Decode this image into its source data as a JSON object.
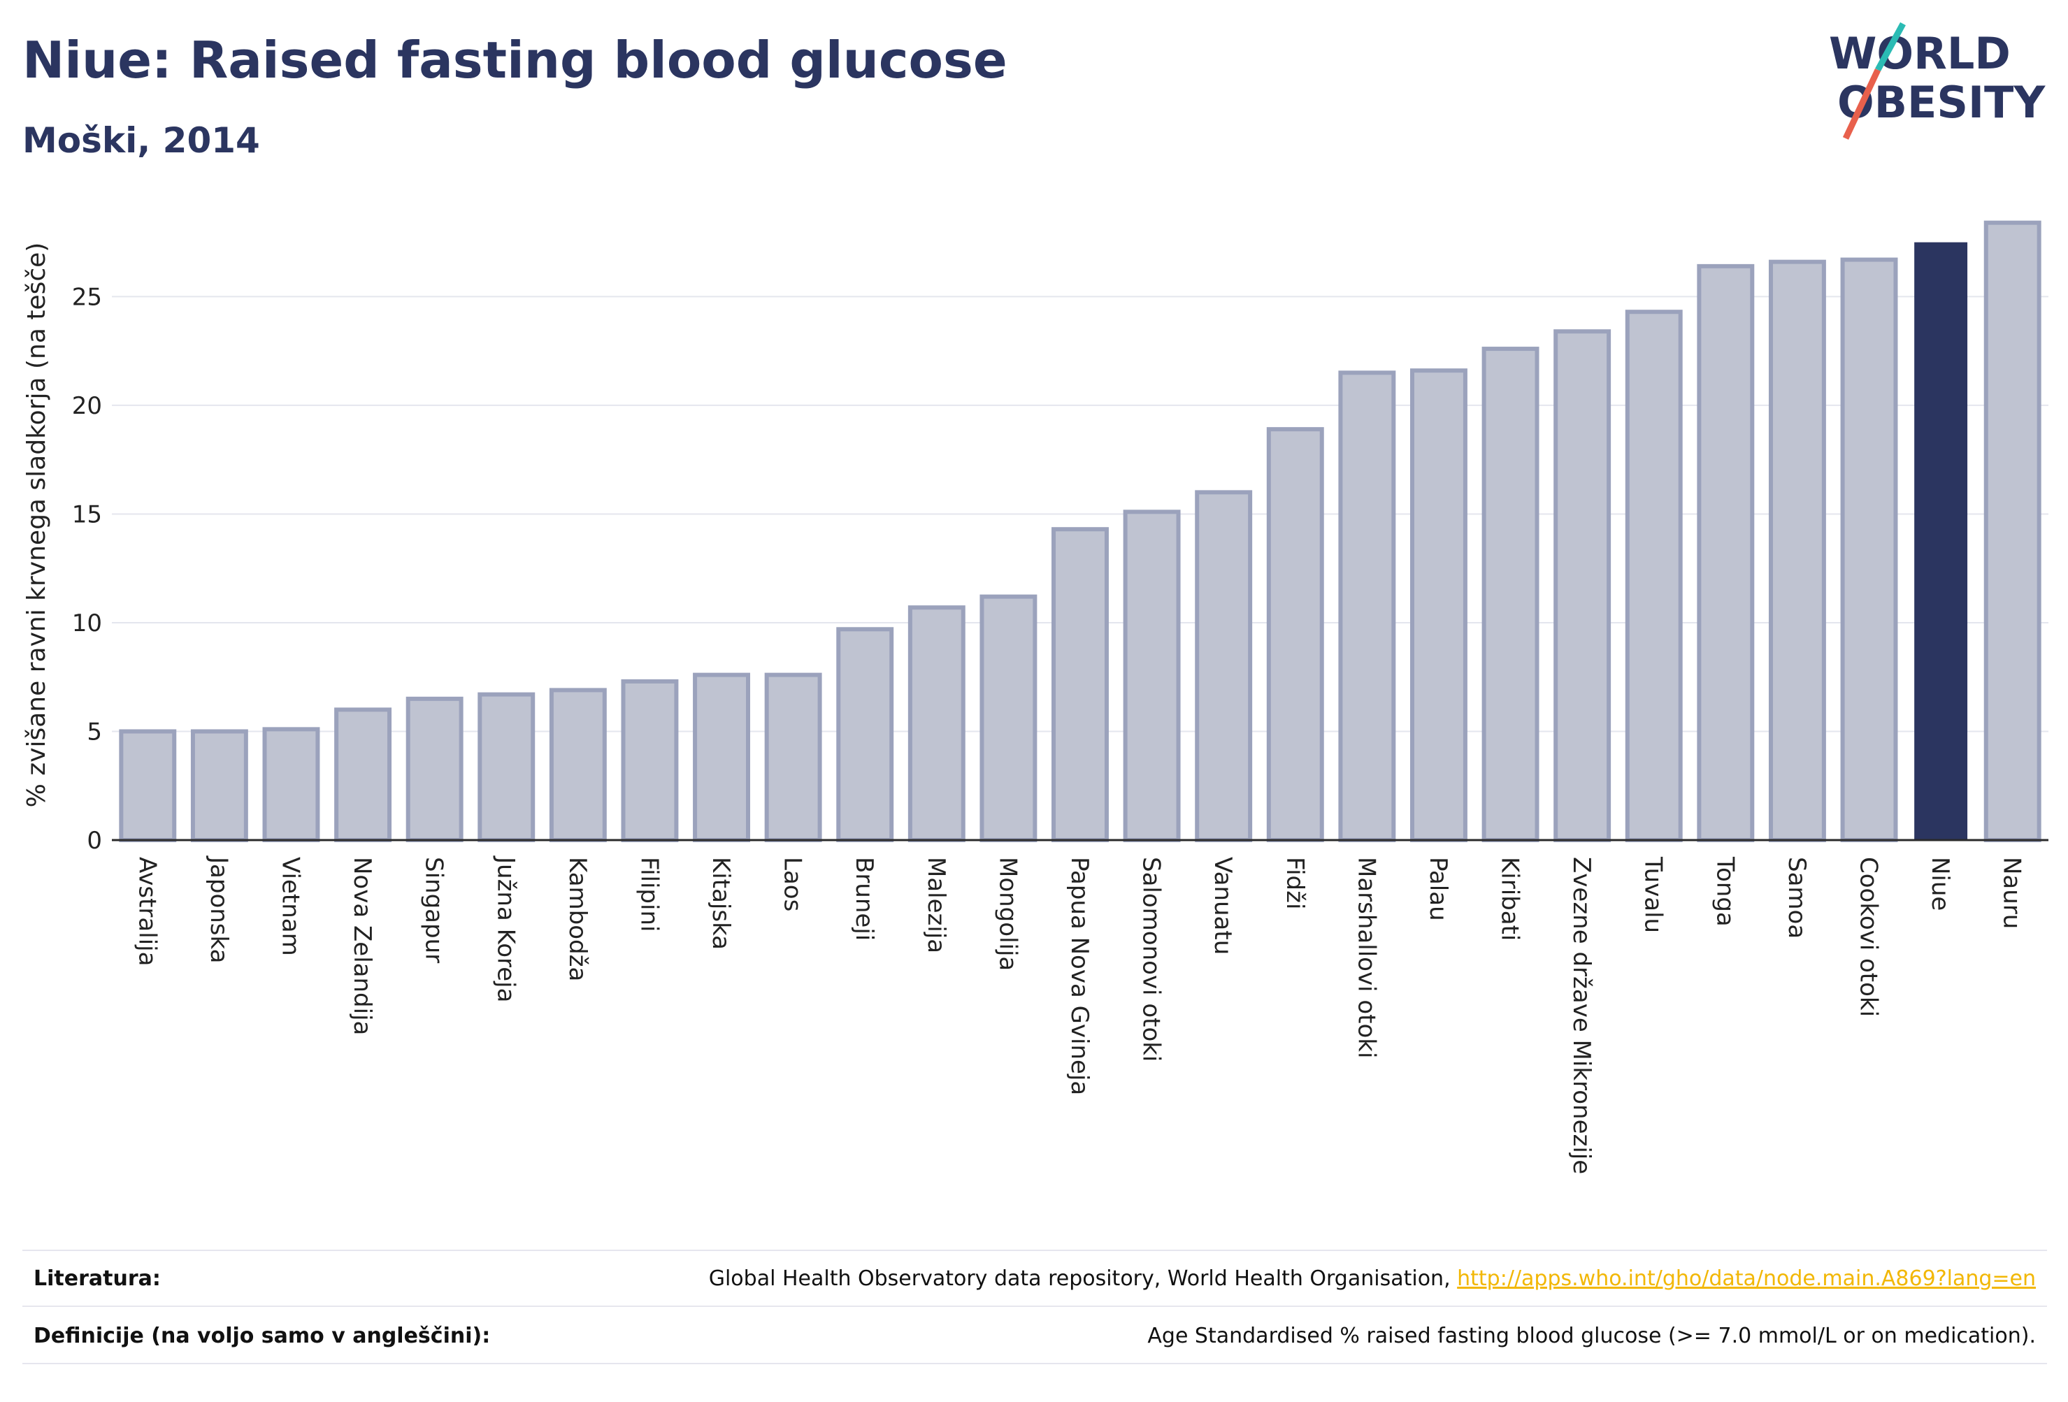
{
  "header": {
    "title": "Niue: Raised fasting blood glucose",
    "subtitle": "Moški, 2014"
  },
  "logo": {
    "line1": "WORLD",
    "line2": "OBESITY",
    "text_color": "#2b3560",
    "accent_teal": "#2bbbb4",
    "accent_red": "#e8604c"
  },
  "colors": {
    "bar_default": "#bfc3d1",
    "bar_border": "#9ba2bc",
    "bar_highlight": "#2b3560",
    "grid": "#e4e6ee",
    "axis": "#2b2b2b"
  },
  "chart_data": {
    "type": "bar",
    "ylabel": "% zvišane ravni krvnega sladkorja (na tešče)",
    "ylim": [
      0,
      29
    ],
    "yticks": [
      0,
      5,
      10,
      15,
      20,
      25
    ],
    "grid": true,
    "highlight": "Niue",
    "categories": [
      "Avstralija",
      "Japonska",
      "Vietnam",
      "Nova Zelandija",
      "Singapur",
      "Južna Koreja",
      "Kambodža",
      "Filipini",
      "Kitajska",
      "Laos",
      "Bruneji",
      "Malezija",
      "Mongolija",
      "Papua Nova Gvineja",
      "Salomonovi otoki",
      "Vanuatu",
      "Fidži",
      "Marshallovi otoki",
      "Palau",
      "Kiribati",
      "Zvezne države Mikronezije",
      "Tuvalu",
      "Tonga",
      "Samoa",
      "Cookovi otoki",
      "Niue",
      "Nauru"
    ],
    "values": [
      5.0,
      5.0,
      5.1,
      6.0,
      6.5,
      6.7,
      6.9,
      7.3,
      7.6,
      7.6,
      9.7,
      10.7,
      11.2,
      14.3,
      15.1,
      16.0,
      18.9,
      21.5,
      21.6,
      22.6,
      23.4,
      24.3,
      26.4,
      26.6,
      26.7,
      27.5,
      28.4
    ]
  },
  "footer": {
    "sources_label": "Literatura:",
    "sources_text": "Global Health Observatory data repository, World Health Organisation, ",
    "sources_link": "http://apps.who.int/gho/data/node.main.A869?lang=en",
    "definitions_label": "Definicije (na voljo samo v angleščini):",
    "definitions_text": "Age Standardised % raised fasting blood glucose (>= 7.0 mmol/L or on medication)."
  }
}
